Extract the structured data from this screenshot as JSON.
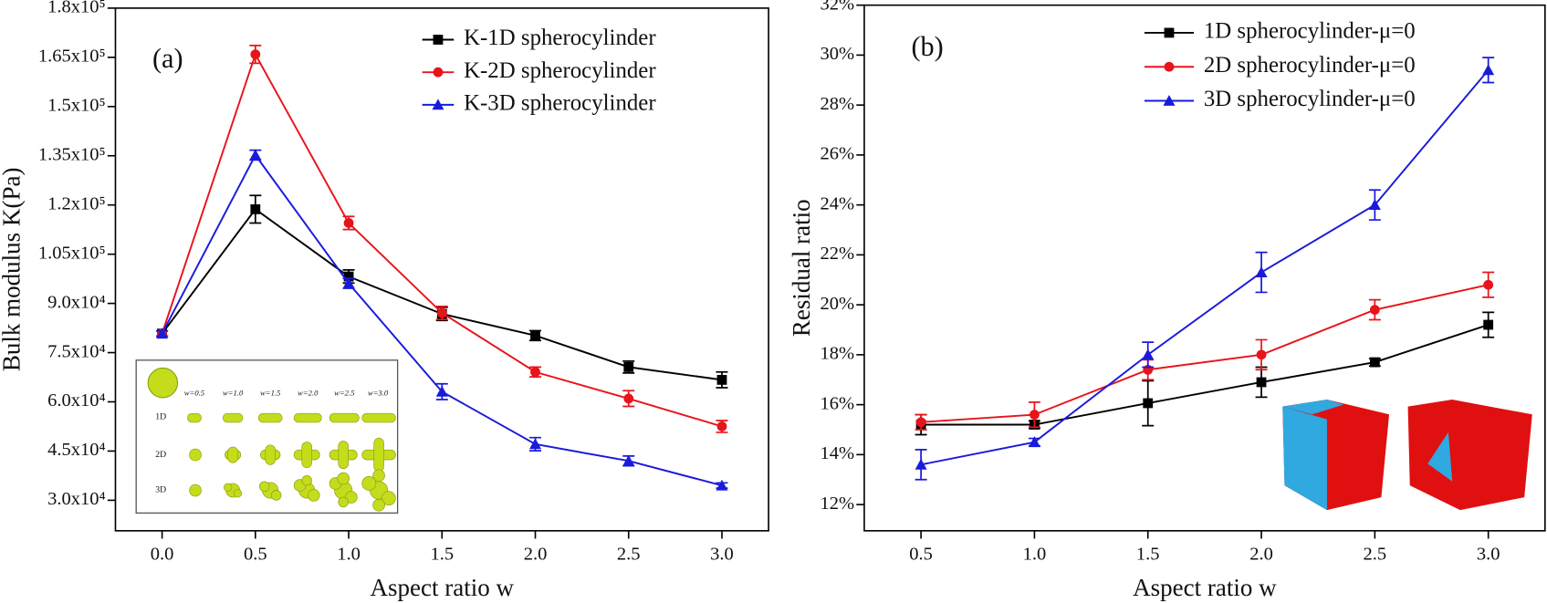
{
  "chart_data": [
    {
      "type": "line",
      "panel_label": "(a)",
      "x_label": "Aspect ratio w",
      "y_label": "Bulk modulus K(Pa)",
      "x": [
        0,
        0.5,
        1,
        1.5,
        2,
        2.5,
        3
      ],
      "xlim": [
        -0.25,
        3.25
      ],
      "xticks": [
        {
          "value": 0,
          "label": "0.0"
        },
        0.5,
        {
          "value": 1,
          "label": "1.0"
        },
        1.5,
        {
          "value": 2,
          "label": "2.0"
        },
        2.5,
        {
          "value": 3,
          "label": "3.0"
        }
      ],
      "ylim": [
        20700,
        180000
      ],
      "yticks": [
        {
          "value": 30000,
          "label": "3.0x10⁴"
        },
        {
          "value": 45000,
          "label": "4.5x10⁴"
        },
        {
          "value": 60000,
          "label": "6.0x10⁴"
        },
        {
          "value": 75000,
          "label": "7.5x10⁴"
        },
        {
          "value": 90000,
          "label": "9.0x10⁴"
        },
        {
          "value": 105000,
          "label": "1.05x10⁵"
        },
        {
          "value": 120000,
          "label": "1.2x10⁵"
        },
        {
          "value": 135000,
          "label": "1.35x10⁵"
        },
        {
          "value": 150000,
          "label": "1.5x10⁵"
        },
        {
          "value": 165000,
          "label": "1.65x10⁵"
        },
        {
          "value": 180000,
          "label": "1.8x10⁵"
        }
      ],
      "legend": "upper right",
      "series": [
        {
          "name": "K-1D spherocylinder",
          "color": "#000000",
          "marker": "square",
          "values": [
            80800,
            118700,
            98200,
            86800,
            80200,
            70600,
            66700
          ],
          "errors": [
            800,
            4200,
            2000,
            2000,
            1500,
            1800,
            2400
          ]
        },
        {
          "name": "K-2D spherocylinder",
          "color": "#e8141b",
          "marker": "circle",
          "values": [
            80800,
            165900,
            114500,
            87100,
            69100,
            61000,
            52500
          ],
          "errors": [
            800,
            2700,
            2000,
            2000,
            1500,
            2400,
            1800
          ]
        },
        {
          "name": "K-3D spherocylinder",
          "color": "#1a1adb",
          "marker": "triangle",
          "values": [
            80800,
            135200,
            96100,
            63100,
            47100,
            42000,
            34500
          ],
          "errors": [
            800,
            1500,
            1500,
            2400,
            2000,
            1500,
            800
          ]
        }
      ],
      "inset": {
        "column_labels": [
          "w=0.5",
          "w=1.0",
          "w=1.5",
          "w=2.0",
          "w=2.5",
          "w=3.0"
        ],
        "row_labels": [
          "1D",
          "2D",
          "3D"
        ]
      }
    },
    {
      "type": "line",
      "panel_label": "(b)",
      "x_label": "Aspect ratio w",
      "y_label": "Residual ratio",
      "x": [
        0.5,
        1,
        1.5,
        2,
        2.5,
        3
      ],
      "xlim": [
        0.25,
        3.25
      ],
      "xticks": [
        0.5,
        {
          "value": 1,
          "label": "1.0"
        },
        1.5,
        {
          "value": 2,
          "label": "2.0"
        },
        2.5,
        {
          "value": 3,
          "label": "3.0"
        }
      ],
      "ylim": [
        10.95,
        32
      ],
      "yticks": [
        {
          "value": 12,
          "label": "12%"
        },
        {
          "value": 14,
          "label": "14%"
        },
        {
          "value": 16,
          "label": "16%"
        },
        {
          "value": 18,
          "label": "18%"
        },
        {
          "value": 20,
          "label": "20%"
        },
        {
          "value": 22,
          "label": "22%"
        },
        {
          "value": 24,
          "label": "24%"
        },
        {
          "value": 26,
          "label": "26%"
        },
        {
          "value": 28,
          "label": "28%"
        },
        {
          "value": 30,
          "label": "30%"
        },
        {
          "value": 32,
          "label": "32%"
        }
      ],
      "legend": "upper right",
      "series": [
        {
          "name": "1D spherocylinder-μ=0",
          "color": "#000000",
          "marker": "square",
          "values": [
            15.2,
            15.2,
            16.06,
            16.9,
            17.7,
            19.2
          ],
          "errors": [
            0.4,
            0.15,
            0.9,
            0.6,
            0.15,
            0.5
          ]
        },
        {
          "name": "2D spherocylinder-μ=0",
          "color": "#e8141b",
          "marker": "circle",
          "values": [
            15.3,
            15.6,
            17.4,
            18.0,
            19.8,
            20.8
          ],
          "errors": [
            0.3,
            0.5,
            0.4,
            0.6,
            0.4,
            0.5
          ]
        },
        {
          "name": "3D spherocylinder-μ=0",
          "color": "#1a1adb",
          "marker": "triangle",
          "values": [
            13.6,
            14.5,
            18.0,
            21.3,
            24.0,
            29.4
          ],
          "errors": [
            0.6,
            0.15,
            0.5,
            0.8,
            0.6,
            0.5
          ]
        }
      ]
    }
  ]
}
